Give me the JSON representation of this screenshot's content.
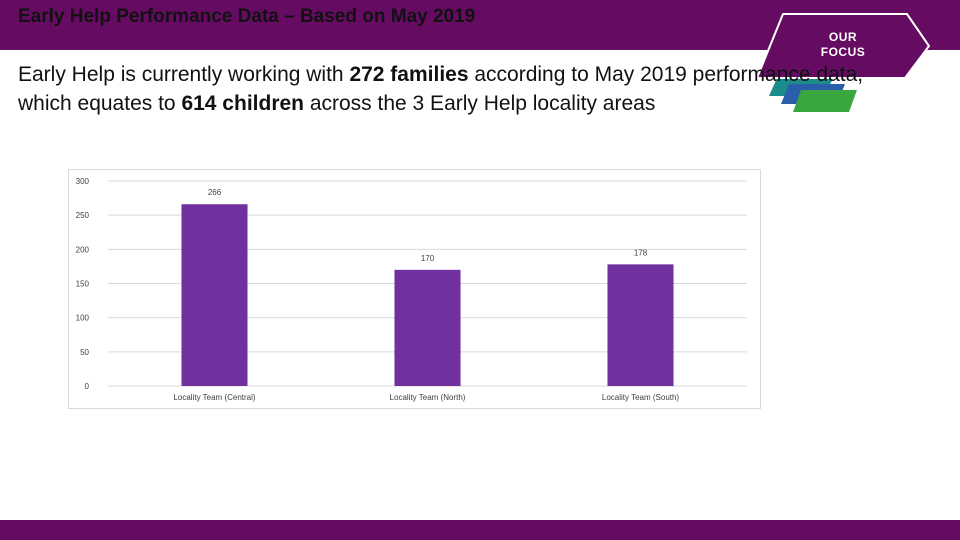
{
  "header": {
    "title": "Early Help Performance Data – Based on May 2019"
  },
  "badge": {
    "line1": "OUR",
    "line2": "FOCUS"
  },
  "intro": {
    "part1": "Early Help is currently working with ",
    "families": "272 families",
    "part2": " according to May 2019 performance data, which equates to ",
    "children": "614 children",
    "part3": " across the 3 Early Help locality areas"
  },
  "colors": {
    "brand": "#650b62",
    "bar": "#7030a0",
    "badge_teal": "#1a8c8c",
    "badge_blue": "#2a5ea8",
    "badge_green": "#3aa640"
  },
  "chart_data": {
    "type": "bar",
    "categories": [
      "Locality Team (Central)",
      "Locality Team (North)",
      "Locality Team (South)"
    ],
    "values": [
      266,
      170,
      178
    ],
    "data_labels": [
      "266",
      "170",
      "178"
    ],
    "ylim": [
      0,
      300
    ],
    "yticks": [
      0,
      50,
      100,
      150,
      200,
      250,
      300
    ],
    "grid": true,
    "legend": "none",
    "title": "",
    "xlabel": "",
    "ylabel": ""
  }
}
